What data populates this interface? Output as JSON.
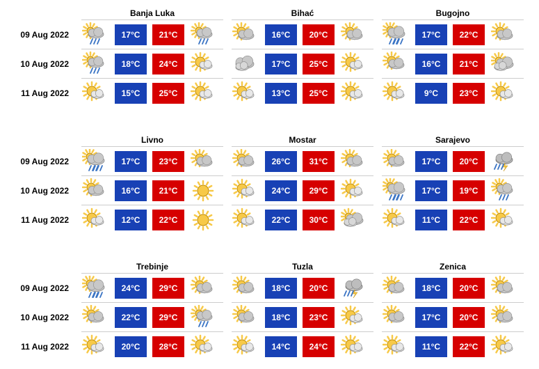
{
  "colors": {
    "low_bg": "#1841b5",
    "high_bg": "#d60000",
    "text": "#000000",
    "divider": "#cccccc",
    "sun": "#f7c948",
    "sun_stroke": "#c08b00",
    "cloud": "#c8c8c8",
    "cloud_stroke": "#8a8a8a",
    "rain": "#3a74c4"
  },
  "groups": [
    {
      "cities": [
        "Banja Luka",
        "Bihać",
        "Bugojno"
      ],
      "rows": [
        {
          "date": "09 Aug 2022",
          "cells": [
            {
              "icon1": "partly-rain",
              "low": "17°C",
              "high": "21°C",
              "icon2": "partly-rain"
            },
            {
              "icon1": "partly",
              "low": "16°C",
              "high": "20°C",
              "icon2": "partly"
            },
            {
              "icon1": "rain",
              "low": "17°C",
              "high": "22°C",
              "icon2": "partly"
            }
          ]
        },
        {
          "date": "10 Aug 2022",
          "cells": [
            {
              "icon1": "partly-rain",
              "low": "18°C",
              "high": "24°C",
              "icon2": "mostly-sunny"
            },
            {
              "icon1": "cloudy",
              "low": "17°C",
              "high": "25°C",
              "icon2": "mostly-sunny"
            },
            {
              "icon1": "partly",
              "low": "16°C",
              "high": "21°C",
              "icon2": "mostly-cloudy"
            }
          ]
        },
        {
          "date": "11 Aug 2022",
          "cells": [
            {
              "icon1": "mostly-sunny",
              "low": "15°C",
              "high": "25°C",
              "icon2": "mostly-sunny"
            },
            {
              "icon1": "mostly-sunny",
              "low": "13°C",
              "high": "25°C",
              "icon2": "mostly-sunny"
            },
            {
              "icon1": "mostly-sunny",
              "low": "9°C",
              "high": "23°C",
              "icon2": "mostly-sunny"
            }
          ]
        }
      ]
    },
    {
      "cities": [
        "Livno",
        "Mostar",
        "Sarajevo"
      ],
      "rows": [
        {
          "date": "09 Aug 2022",
          "cells": [
            {
              "icon1": "rain",
              "low": "17°C",
              "high": "23°C",
              "icon2": "partly"
            },
            {
              "icon1": "partly",
              "low": "26°C",
              "high": "31°C",
              "icon2": "partly"
            },
            {
              "icon1": "partly",
              "low": "17°C",
              "high": "20°C",
              "icon2": "storm"
            }
          ]
        },
        {
          "date": "10 Aug 2022",
          "cells": [
            {
              "icon1": "partly",
              "low": "16°C",
              "high": "21°C",
              "icon2": "sunny"
            },
            {
              "icon1": "mostly-sunny",
              "low": "24°C",
              "high": "29°C",
              "icon2": "mostly-sunny"
            },
            {
              "icon1": "rain",
              "low": "17°C",
              "high": "19°C",
              "icon2": "partly-rain"
            }
          ]
        },
        {
          "date": "11 Aug 2022",
          "cells": [
            {
              "icon1": "mostly-sunny",
              "low": "12°C",
              "high": "22°C",
              "icon2": "sunny"
            },
            {
              "icon1": "mostly-sunny",
              "low": "22°C",
              "high": "30°C",
              "icon2": "mostly-cloudy"
            },
            {
              "icon1": "mostly-sunny",
              "low": "11°C",
              "high": "22°C",
              "icon2": "mostly-sunny"
            }
          ]
        }
      ]
    },
    {
      "cities": [
        "Trebinje",
        "Tuzla",
        "Zenica"
      ],
      "rows": [
        {
          "date": "09 Aug 2022",
          "cells": [
            {
              "icon1": "rain",
              "low": "24°C",
              "high": "29°C",
              "icon2": "partly"
            },
            {
              "icon1": "partly",
              "low": "18°C",
              "high": "20°C",
              "icon2": "storm"
            },
            {
              "icon1": "partly",
              "low": "18°C",
              "high": "20°C",
              "icon2": "partly"
            }
          ]
        },
        {
          "date": "10 Aug 2022",
          "cells": [
            {
              "icon1": "partly",
              "low": "22°C",
              "high": "29°C",
              "icon2": "partly-rain"
            },
            {
              "icon1": "partly",
              "low": "18°C",
              "high": "23°C",
              "icon2": "mostly-sunny"
            },
            {
              "icon1": "partly",
              "low": "17°C",
              "high": "20°C",
              "icon2": "partly"
            }
          ]
        },
        {
          "date": "11 Aug 2022",
          "cells": [
            {
              "icon1": "mostly-sunny",
              "low": "20°C",
              "high": "28°C",
              "icon2": "mostly-sunny"
            },
            {
              "icon1": "mostly-sunny",
              "low": "14°C",
              "high": "24°C",
              "icon2": "mostly-sunny"
            },
            {
              "icon1": "mostly-sunny",
              "low": "11°C",
              "high": "22°C",
              "icon2": "mostly-sunny"
            }
          ]
        }
      ]
    }
  ]
}
